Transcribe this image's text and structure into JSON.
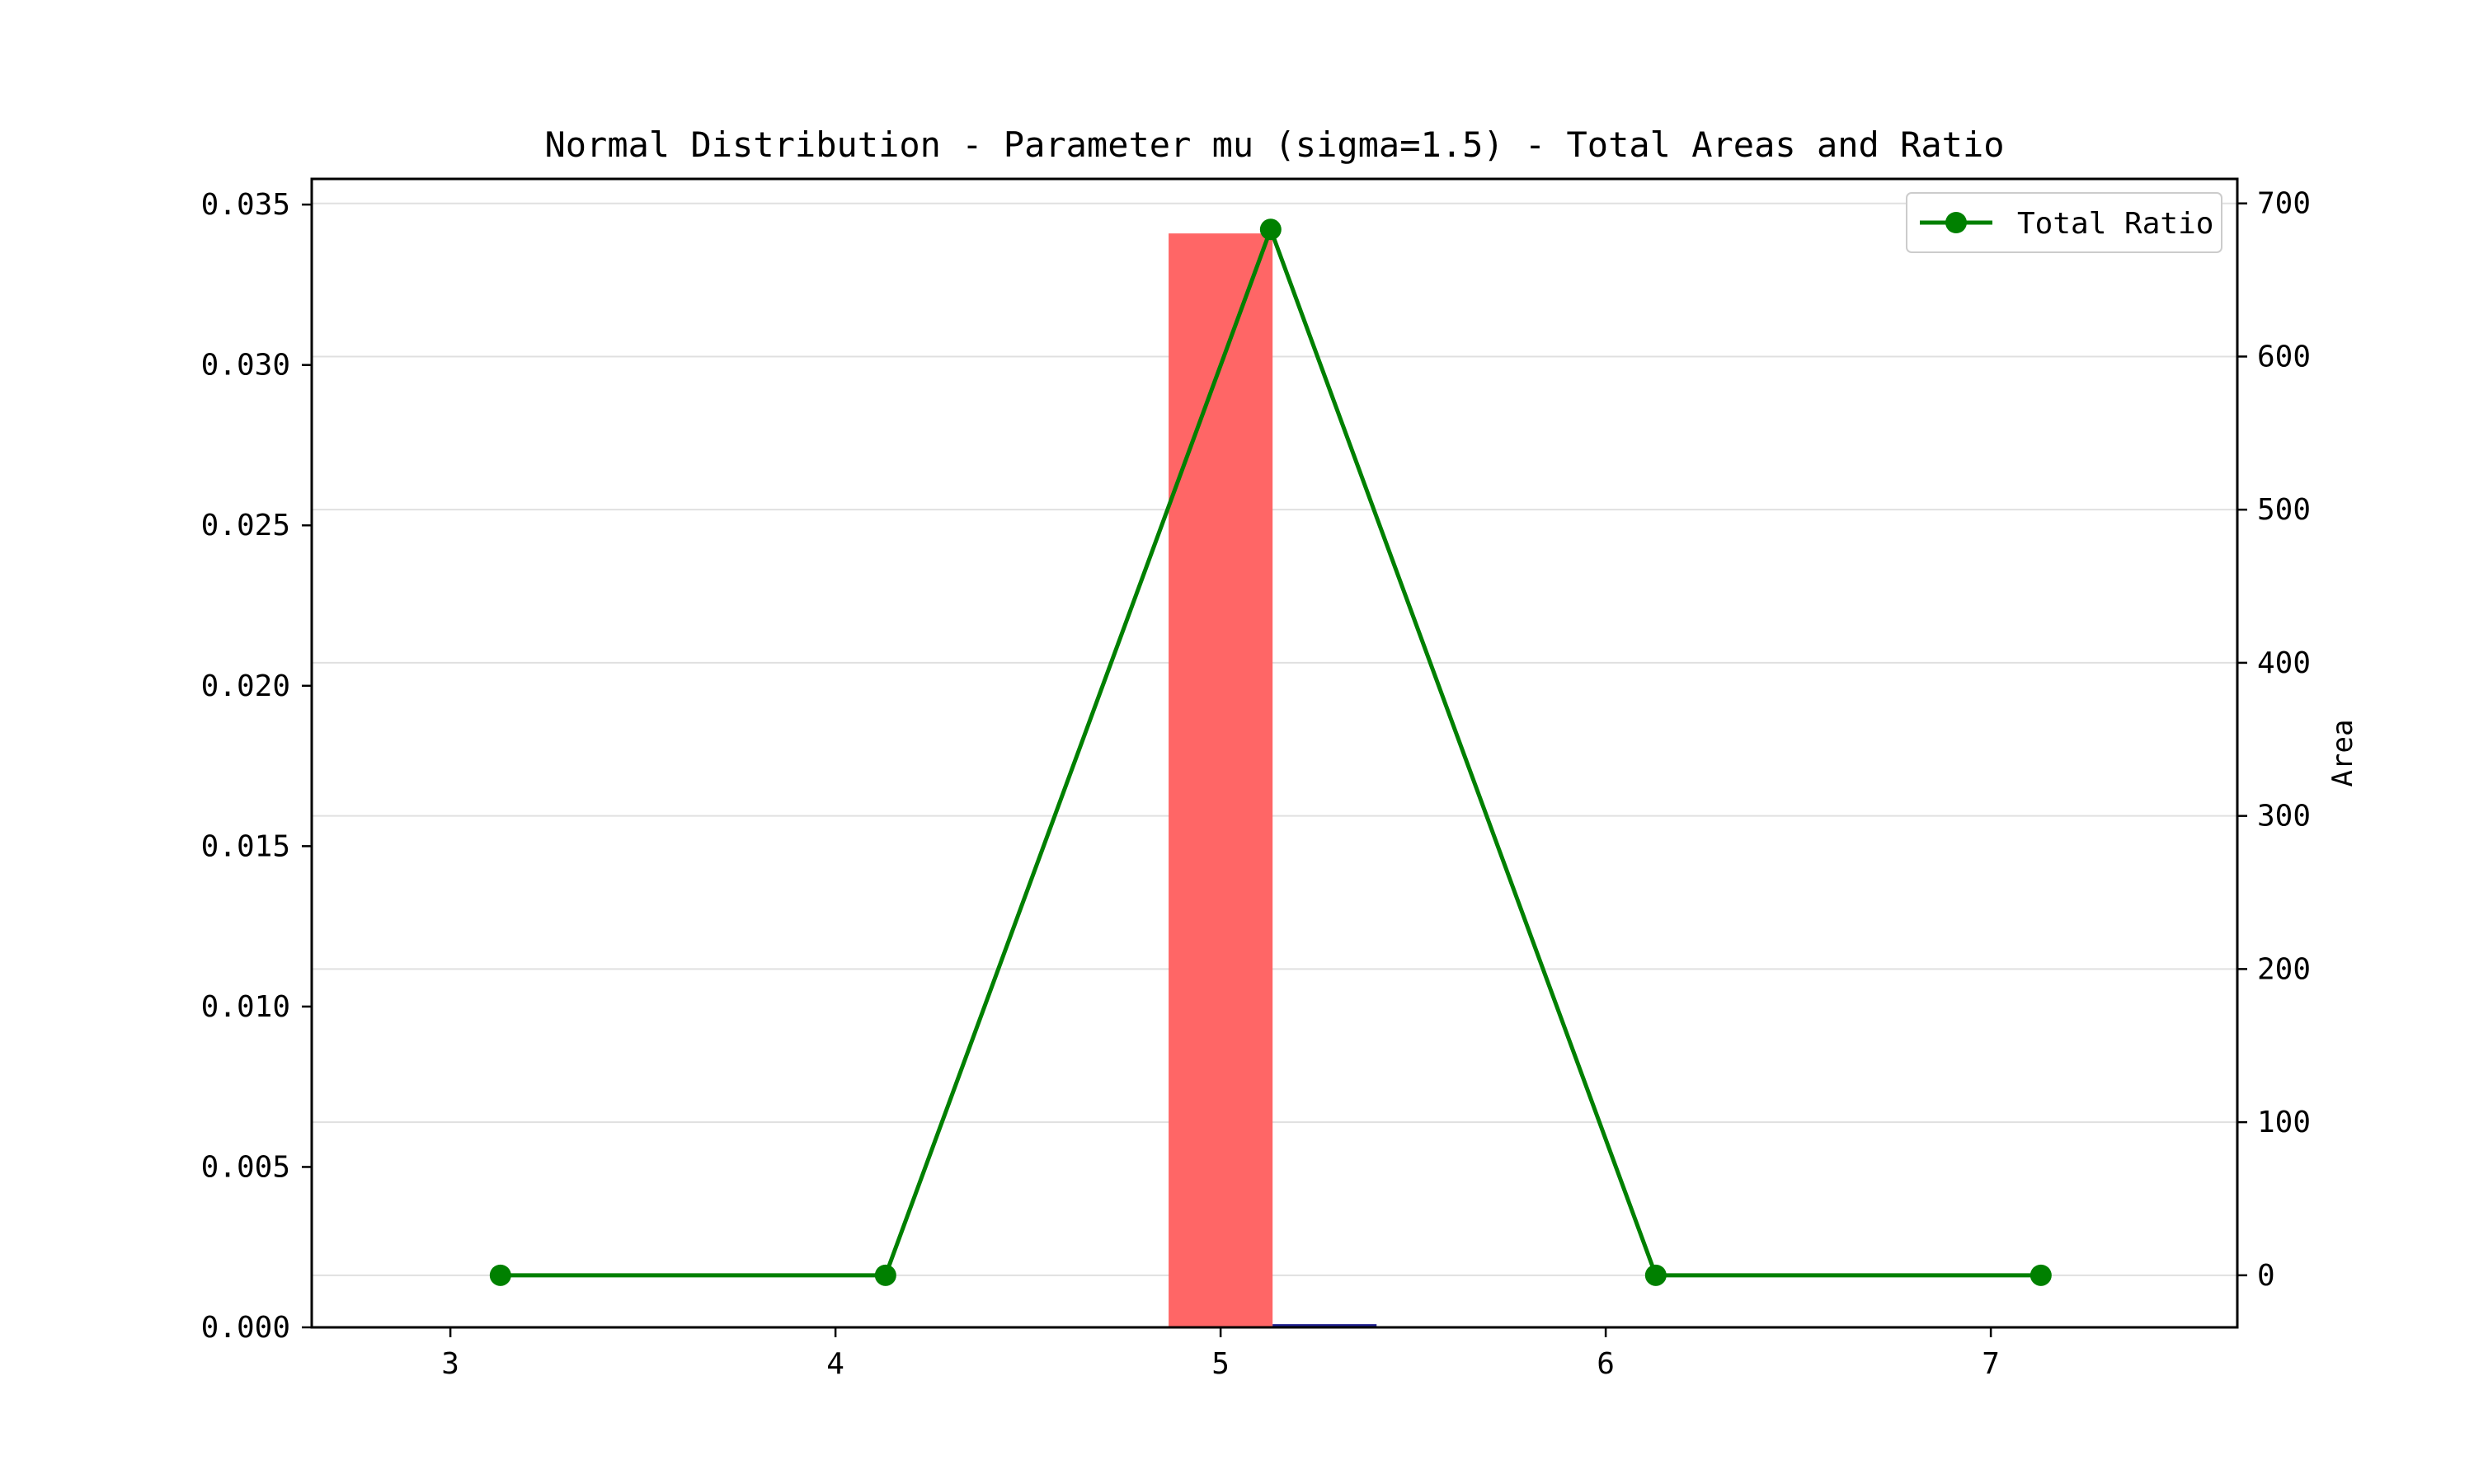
{
  "chart_data": {
    "type": "bar",
    "title": "Normal Distribution - Parameter mu (sigma=1.5) - Total Areas and Ratio",
    "xlabel": "",
    "ylabel_left": "",
    "ylabel_right": "Area",
    "xlim": [
      2.64,
      7.64
    ],
    "ylim_left": [
      0,
      0.0358
    ],
    "ylim_right": [
      -34,
      716
    ],
    "x_ticks": [
      3,
      4,
      5,
      6,
      7
    ],
    "y_left_ticks": [
      "0.000",
      "0.005",
      "0.010",
      "0.015",
      "0.020",
      "0.025",
      "0.030",
      "0.035"
    ],
    "y_right_ticks": [
      0,
      100,
      200,
      300,
      400,
      500,
      600,
      700
    ],
    "grid": true,
    "legend_position": "top-right",
    "colors": {
      "bar_primary": "#ff6666",
      "bar_secondary": "#1f1f8f",
      "line": "#008000",
      "grid": "#e0e0e0",
      "axis": "#000000"
    },
    "bars": [
      {
        "x": 5.0,
        "width": 0.27,
        "value": 0.0341,
        "axis": "left",
        "color": "#ff6666"
      },
      {
        "x": 5.27,
        "width": 0.27,
        "value": 0.0001,
        "axis": "left",
        "color": "#1f1f8f"
      }
    ],
    "series": [
      {
        "name": "Total Ratio",
        "type": "line",
        "axis": "right",
        "x": [
          3.13,
          4.13,
          5.13,
          6.13,
          7.13
        ],
        "values": [
          0,
          0,
          683,
          0,
          0
        ]
      }
    ]
  }
}
